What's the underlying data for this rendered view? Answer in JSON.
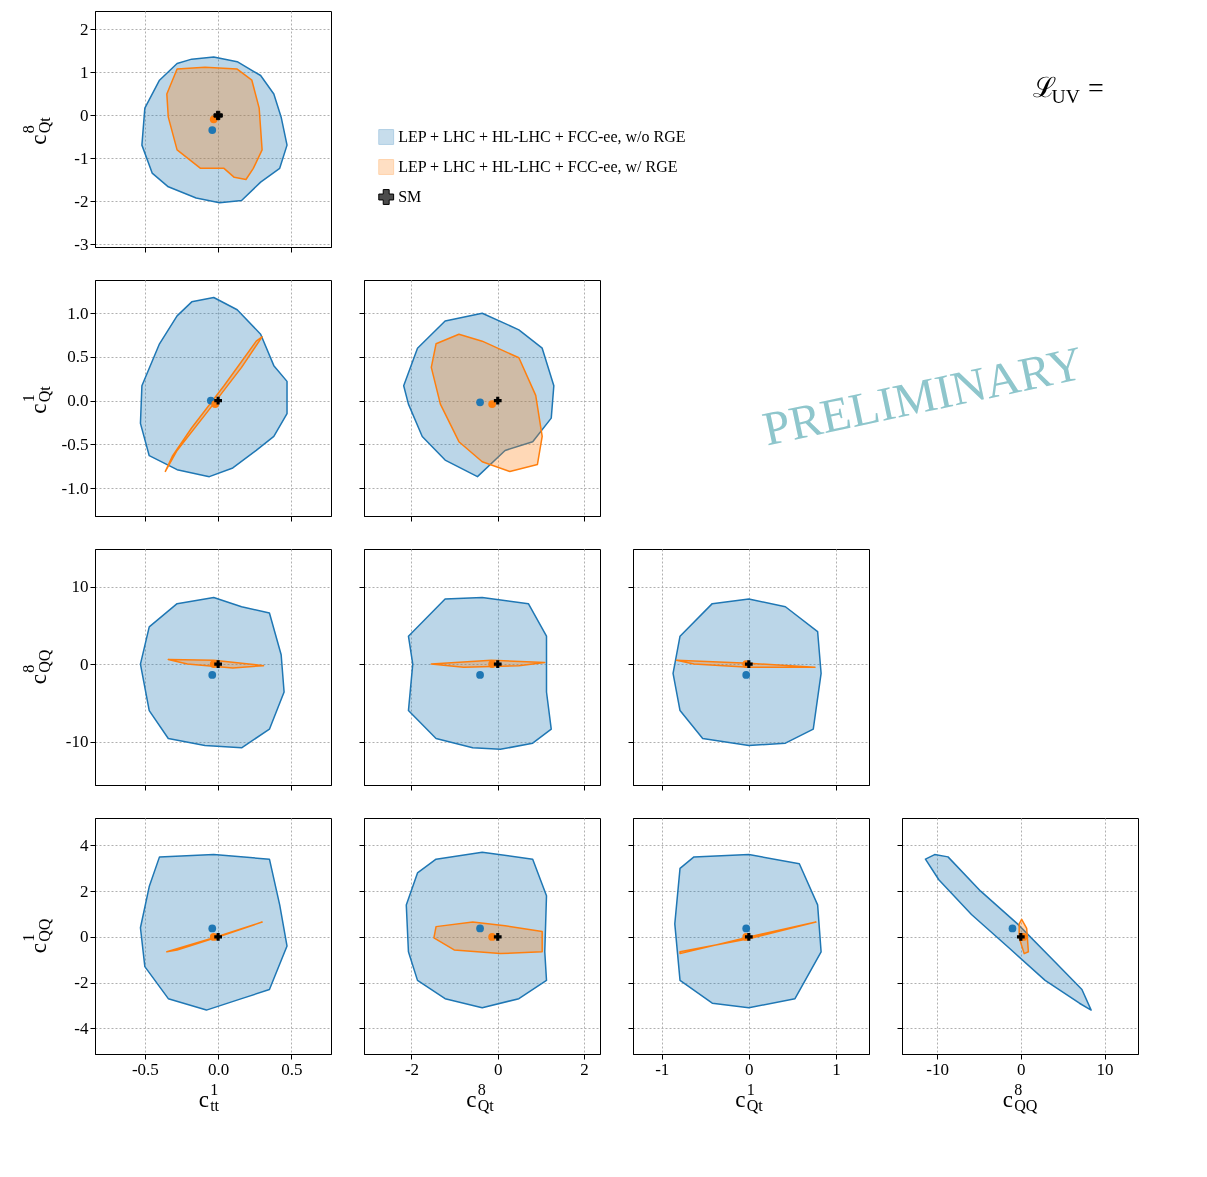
{
  "chart_data": [
    {
      "type": "area",
      "ylabel": "c$^{8}$$_{Qt}$",
      "xlim": [
        -0.84,
        0.77
      ],
      "ylim": [
        -3.06,
        2.43
      ],
      "xticks": [
        -0.5,
        0,
        0.5
      ],
      "yticks": [
        -3,
        -2,
        -1,
        0,
        1,
        2
      ],
      "tick_labels": "y",
      "grid": true,
      "legend": "right",
      "annotations": [
        "ℒ$_{UV}$ ="
      ],
      "series": [
        {
          "name": "LEP + LHC + HL-LHC + FCC-ee, w/o RGE",
          "color": "#1f77b4",
          "x": [
            -0.18,
            -0.03,
            0.13,
            0.29,
            0.38,
            0.43,
            0.47,
            0.42,
            0.29,
            0.16,
            0.01,
            -0.15,
            -0.34,
            -0.45,
            -0.52,
            -0.5,
            -0.4,
            -0.28
          ],
          "values": [
            1.31,
            1.36,
            1.25,
            0.93,
            0.5,
            -0.04,
            -0.69,
            -1.23,
            -1.55,
            -1.98,
            -2.03,
            -1.92,
            -1.66,
            -1.34,
            -0.69,
            0.17,
            0.82,
            1.21
          ]
        },
        {
          "name": "LEP + LHC + HL-LHC + FCC-ee, w/ RGE",
          "color": "#ff7f0e",
          "x": [
            -0.28,
            -0.09,
            0.13,
            0.23,
            0.28,
            0.3,
            0.24,
            0.19,
            0.11,
            0.04,
            -0.12,
            -0.28,
            -0.34,
            -0.35
          ],
          "values": [
            1.08,
            1.12,
            1.08,
            0.82,
            0.17,
            -0.8,
            -1.23,
            -1.49,
            -1.44,
            -1.23,
            -1.23,
            -0.8,
            -0.04,
            0.5
          ]
        },
        {
          "type": "scatter",
          "marker": "circle",
          "color": "#1f77b4",
          "x": [
            -0.04
          ],
          "values": [
            -0.34
          ]
        },
        {
          "type": "scatter",
          "marker": "circle",
          "color": "#ff7f0e",
          "x": [
            -0.03
          ],
          "values": [
            -0.09
          ]
        },
        {
          "type": "scatter",
          "marker": "cross",
          "name": "SM",
          "color": "#000000",
          "x": [
            0
          ],
          "values": [
            0
          ]
        }
      ]
    },
    {
      "type": "area",
      "ylabel": "c$^{1}$$_{Qt}$",
      "xlim": [
        -0.84,
        0.77
      ],
      "ylim": [
        -1.32,
        1.38
      ],
      "xticks": [
        -0.5,
        0,
        0.5
      ],
      "yticks": [
        {
          "value": -1,
          "label": "-1.0"
        },
        -0.5,
        {
          "value": 0,
          "label": "0.0"
        },
        0.5,
        {
          "value": 1,
          "label": "1.0"
        }
      ],
      "tick_labels": "y",
      "grid": true,
      "series": [
        {
          "color": "#1f77b4",
          "x": [
            -0.18,
            -0.03,
            0.13,
            0.29,
            0.38,
            0.47,
            0.47,
            0.38,
            0.26,
            0.1,
            -0.06,
            -0.28,
            -0.47,
            -0.53,
            -0.52,
            -0.4,
            -0.28
          ],
          "values": [
            1.13,
            1.18,
            1.04,
            0.76,
            0.4,
            0.22,
            -0.15,
            -0.41,
            -0.57,
            -0.77,
            -0.87,
            -0.79,
            -0.63,
            -0.26,
            0.17,
            0.65,
            0.97
          ]
        },
        {
          "color": "#ff7f0e",
          "x": [
            -0.36,
            -0.28,
            -0.06,
            0.16,
            0.3,
            0.26,
            0.04,
            -0.18,
            -0.31
          ],
          "values": [
            -0.81,
            -0.57,
            -0.1,
            0.38,
            0.73,
            0.68,
            0.17,
            -0.31,
            -0.63
          ]
        },
        {
          "type": "scatter",
          "marker": "circle",
          "color": "#1f77b4",
          "x": [
            -0.05
          ],
          "values": [
            0.0
          ]
        },
        {
          "type": "scatter",
          "marker": "circle",
          "color": "#ff7f0e",
          "x": [
            -0.02
          ],
          "values": [
            -0.04
          ]
        },
        {
          "type": "scatter",
          "marker": "cross",
          "color": "#000000",
          "x": [
            0
          ],
          "values": [
            0
          ]
        }
      ]
    },
    {
      "type": "area",
      "xlim": [
        -3.1,
        2.37
      ],
      "ylim": [
        -1.32,
        1.38
      ],
      "xticks": [
        -2,
        0,
        2
      ],
      "yticks": [
        -1,
        -0.5,
        0,
        0.5,
        1
      ],
      "tick_labels": false,
      "grid": true,
      "annotations": [
        "PRELIMINARY"
      ],
      "series": [
        {
          "color": "#1f77b4",
          "x": [
            -1.22,
            -0.36,
            0.49,
            1.03,
            1.3,
            1.24,
            0.81,
            0.17,
            -0.47,
            -1.22,
            -1.75,
            -2.07,
            -2.18,
            -1.86
          ],
          "values": [
            0.91,
            1.0,
            0.81,
            0.6,
            0.17,
            -0.2,
            -0.47,
            -0.57,
            -0.87,
            -0.68,
            -0.41,
            -0.04,
            0.17,
            0.6
          ]
        },
        {
          "color": "#ff7f0e",
          "x": [
            -1.43,
            -0.9,
            -0.36,
            0.49,
            0.88,
            1.03,
            0.92,
            0.28,
            -0.36,
            -0.9,
            -1.33,
            -1.54
          ],
          "values": [
            0.65,
            0.76,
            0.68,
            0.49,
            0.06,
            -0.41,
            -0.73,
            -0.81,
            -0.7,
            -0.47,
            -0.04,
            0.38
          ]
        },
        {
          "type": "scatter",
          "marker": "circle",
          "color": "#1f77b4",
          "x": [
            -0.41
          ],
          "values": [
            -0.02
          ]
        },
        {
          "type": "scatter",
          "marker": "circle",
          "color": "#ff7f0e",
          "x": [
            -0.13
          ],
          "values": [
            -0.04
          ]
        },
        {
          "type": "scatter",
          "marker": "cross",
          "color": "#000000",
          "x": [
            0
          ],
          "values": [
            0
          ]
        }
      ]
    },
    {
      "type": "area",
      "ylabel": "c$^{8}$$_{QQ}$",
      "xlim": [
        -0.84,
        0.77
      ],
      "ylim": [
        -15.6,
        14.85
      ],
      "xticks": [
        -0.5,
        0,
        0.5
      ],
      "yticks": [
        -10,
        0,
        10
      ],
      "tick_labels": "y",
      "grid": true,
      "series": [
        {
          "color": "#1f77b4",
          "x": [
            -0.28,
            -0.03,
            0.16,
            0.35,
            0.43,
            0.45,
            0.35,
            0.16,
            -0.09,
            -0.34,
            -0.47,
            -0.53,
            -0.47
          ],
          "values": [
            7.8,
            8.6,
            7.4,
            6.6,
            1.2,
            -3.6,
            -8.4,
            -10.8,
            -10.5,
            -9.6,
            -6.0,
            0,
            4.8
          ]
        },
        {
          "color": "#ff7f0e",
          "x": [
            -0.34,
            -0.03,
            0.31,
            0.1,
            -0.21
          ],
          "values": [
            0.6,
            0.5,
            -0.2,
            -0.5,
            0
          ]
        },
        {
          "type": "scatter",
          "marker": "circle",
          "color": "#1f77b4",
          "x": [
            -0.04
          ],
          "values": [
            -1.4
          ]
        },
        {
          "type": "scatter",
          "marker": "circle",
          "color": "#ff7f0e",
          "x": [
            -0.03
          ],
          "values": [
            0
          ]
        },
        {
          "type": "scatter",
          "marker": "cross",
          "color": "#000000",
          "x": [
            0
          ],
          "values": [
            0
          ]
        }
      ]
    },
    {
      "type": "area",
      "xlim": [
        -3.1,
        2.37
      ],
      "ylim": [
        -15.6,
        14.85
      ],
      "xticks": [
        -2,
        0,
        2
      ],
      "yticks": [
        -10,
        0,
        10
      ],
      "tick_labels": false,
      "grid": true,
      "series": [
        {
          "color": "#1f77b4",
          "x": [
            -1.22,
            -0.36,
            0.71,
            1.13,
            1.13,
            1.24,
            0.81,
            0.06,
            -0.58,
            -1.43,
            -2.07,
            -1.97,
            -2.07
          ],
          "values": [
            8.4,
            8.6,
            7.8,
            3.6,
            -3.6,
            -8.4,
            -10.2,
            -11.0,
            -10.8,
            -9.6,
            -6.0,
            0,
            3.6
          ]
        },
        {
          "color": "#ff7f0e",
          "x": [
            -1.54,
            -0.15,
            1.09,
            0.49,
            -0.79
          ],
          "values": [
            0,
            0.5,
            0.2,
            -0.2,
            -0.4
          ]
        },
        {
          "type": "scatter",
          "marker": "circle",
          "color": "#1f77b4",
          "x": [
            -0.41
          ],
          "values": [
            -1.4
          ]
        },
        {
          "type": "scatter",
          "marker": "circle",
          "color": "#ff7f0e",
          "x": [
            -0.13
          ],
          "values": [
            0
          ]
        },
        {
          "type": "scatter",
          "marker": "cross",
          "color": "#000000",
          "x": [
            0
          ],
          "values": [
            0
          ]
        }
      ]
    },
    {
      "type": "area",
      "xlim": [
        -1.33,
        1.38
      ],
      "ylim": [
        -15.6,
        14.85
      ],
      "xticks": [
        -1,
        0,
        1
      ],
      "yticks": [
        -10,
        0,
        10
      ],
      "tick_labels": false,
      "grid": true,
      "series": [
        {
          "color": "#1f77b4",
          "x": [
            -0.42,
            0,
            0.42,
            0.79,
            0.83,
            0.74,
            0.42,
            0,
            -0.53,
            -0.79,
            -0.87,
            -0.79
          ],
          "values": [
            7.8,
            8.4,
            7.4,
            4.2,
            -1.2,
            -8.4,
            -10.2,
            -10.5,
            -9.6,
            -6.0,
            -1.2,
            3.6
          ]
        },
        {
          "color": "#ff7f0e",
          "x": [
            -0.83,
            0,
            0.76,
            0,
            -0.63
          ],
          "values": [
            0.5,
            0.1,
            -0.4,
            -0.4,
            0
          ]
        },
        {
          "type": "scatter",
          "marker": "circle",
          "color": "#1f77b4",
          "x": [
            -0.03
          ],
          "values": [
            -1.4
          ]
        },
        {
          "type": "scatter",
          "marker": "circle",
          "color": "#ff7f0e",
          "x": [
            -0.03
          ],
          "values": [
            0
          ]
        },
        {
          "type": "scatter",
          "marker": "cross",
          "color": "#000000",
          "x": [
            0
          ],
          "values": [
            0
          ]
        }
      ]
    },
    {
      "type": "area",
      "xlabel": "c$^{1}$$_{tt}$",
      "ylabel": "c$^{1}$$_{QQ}$",
      "xlim": [
        -0.84,
        0.77
      ],
      "ylim": [
        -5.12,
        5.2
      ],
      "xticks": [
        -0.5,
        {
          "value": 0,
          "label": "0.0"
        },
        0.5
      ],
      "yticks": [
        -4,
        -2,
        0,
        2,
        4
      ],
      "grid": true,
      "series": [
        {
          "color": "#1f77b4",
          "x": [
            -0.4,
            -0.03,
            0.35,
            0.42,
            0.47,
            0.35,
            0.16,
            -0.08,
            -0.34,
            -0.5,
            -0.53,
            -0.47
          ],
          "values": [
            3.5,
            3.6,
            3.4,
            1.4,
            -0.4,
            -2.3,
            -2.7,
            -3.2,
            -2.7,
            -1.3,
            0.4,
            2.2
          ]
        },
        {
          "color": "#ff7f0e",
          "x": [
            -0.35,
            -0.03,
            0.3,
            0.04,
            -0.28
          ],
          "values": [
            -0.65,
            -0.04,
            0.65,
            0.08,
            -0.57
          ]
        },
        {
          "type": "scatter",
          "marker": "circle",
          "color": "#1f77b4",
          "x": [
            -0.04
          ],
          "values": [
            0.37
          ]
        },
        {
          "type": "scatter",
          "marker": "circle",
          "color": "#ff7f0e",
          "x": [
            -0.03
          ],
          "values": [
            0
          ]
        },
        {
          "type": "scatter",
          "marker": "cross",
          "color": "#000000",
          "x": [
            0
          ],
          "values": [
            0
          ]
        }
      ]
    },
    {
      "type": "area",
      "xlabel": "c$^{8}$$_{Qt}$",
      "xlim": [
        -3.1,
        2.37
      ],
      "ylim": [
        -5.12,
        5.2
      ],
      "xticks": [
        -2,
        0,
        2
      ],
      "yticks": [
        -4,
        -2,
        0,
        2,
        4
      ],
      "tick_labels": "x",
      "grid": true,
      "series": [
        {
          "color": "#1f77b4",
          "x": [
            -1.43,
            -0.36,
            0.81,
            1.13,
            1.09,
            1.13,
            0.49,
            -0.36,
            -1.22,
            -1.86,
            -2.07,
            -2.12,
            -1.86
          ],
          "values": [
            3.4,
            3.7,
            3.4,
            1.8,
            -0.65,
            -1.9,
            -2.7,
            -3.1,
            -2.7,
            -1.9,
            -0.65,
            1.4,
            2.8
          ]
        },
        {
          "color": "#ff7f0e",
          "x": [
            -1.43,
            -0.58,
            0.17,
            1.03,
            1.03,
            0.06,
            -1.01,
            -1.48
          ],
          "values": [
            0.45,
            0.65,
            0.49,
            0.24,
            -0.65,
            -0.73,
            -0.57,
            -0.04
          ]
        },
        {
          "type": "scatter",
          "marker": "circle",
          "color": "#1f77b4",
          "x": [
            -0.41
          ],
          "values": [
            0.37
          ]
        },
        {
          "type": "scatter",
          "marker": "circle",
          "color": "#ff7f0e",
          "x": [
            -0.13
          ],
          "values": [
            0
          ]
        },
        {
          "type": "scatter",
          "marker": "cross",
          "color": "#000000",
          "x": [
            0
          ],
          "values": [
            0
          ]
        }
      ]
    },
    {
      "type": "area",
      "xlabel": "c$^{1}$$_{Qt}$",
      "xlim": [
        -1.33,
        1.38
      ],
      "ylim": [
        -5.12,
        5.2
      ],
      "xticks": [
        -1,
        0,
        1
      ],
      "yticks": [
        -4,
        -2,
        0,
        2,
        4
      ],
      "tick_labels": "x",
      "grid": true,
      "series": [
        {
          "color": "#1f77b4",
          "x": [
            -0.63,
            0,
            0.58,
            0.79,
            0.83,
            0.53,
            0,
            -0.42,
            -0.79,
            -0.85,
            -0.79
          ],
          "values": [
            3.5,
            3.6,
            3.2,
            1.4,
            -0.65,
            -2.7,
            -3.1,
            -2.9,
            -1.9,
            0.57,
            3.0
          ]
        },
        {
          "color": "#ff7f0e",
          "x": [
            -0.79,
            0,
            0.77,
            0,
            -0.79
          ],
          "values": [
            -0.73,
            0,
            0.65,
            -0.08,
            -0.65
          ]
        },
        {
          "type": "scatter",
          "marker": "circle",
          "color": "#1f77b4",
          "x": [
            -0.03
          ],
          "values": [
            0.37
          ]
        },
        {
          "type": "scatter",
          "marker": "circle",
          "color": "#ff7f0e",
          "x": [
            -0.03
          ],
          "values": [
            0
          ]
        },
        {
          "type": "scatter",
          "marker": "cross",
          "color": "#000000",
          "x": [
            0
          ],
          "values": [
            0
          ]
        }
      ]
    },
    {
      "type": "area",
      "xlabel": "c$^{8}$$_{QQ}$",
      "xlim": [
        -14.2,
        14
      ],
      "ylim": [
        -5.12,
        5.2
      ],
      "xticks": [
        -10,
        0,
        10
      ],
      "yticks": [
        -4,
        -2,
        0,
        2,
        4
      ],
      "tick_labels": "x",
      "grid": true,
      "series": [
        {
          "color": "#1f77b4",
          "x": [
            -10.3,
            -8.7,
            -4.8,
            -0.4,
            4.0,
            7.3,
            8.4,
            7.0,
            2.9,
            -1.5,
            -5.9,
            -9.8,
            -11.4
          ],
          "values": [
            3.6,
            3.5,
            2.0,
            0.57,
            -1.06,
            -2.3,
            -3.2,
            -2.9,
            -1.9,
            -0.45,
            0.98,
            2.5,
            3.4
          ]
        },
        {
          "color": "#ff7f0e",
          "x": [
            0.1,
            0.7,
            0.9,
            0.4,
            -0.2,
            -0.2
          ],
          "values": [
            0.77,
            0.37,
            -0.65,
            -0.73,
            -0.04,
            0.57
          ]
        },
        {
          "type": "scatter",
          "marker": "circle",
          "color": "#1f77b4",
          "x": [
            -1.0
          ],
          "values": [
            0.37
          ]
        },
        {
          "type": "scatter",
          "marker": "circle",
          "color": "#ff7f0e",
          "x": [
            0.3
          ],
          "values": [
            0
          ]
        },
        {
          "type": "scatter",
          "marker": "cross",
          "color": "#000000",
          "x": [
            0
          ],
          "values": [
            0
          ]
        }
      ]
    }
  ]
}
